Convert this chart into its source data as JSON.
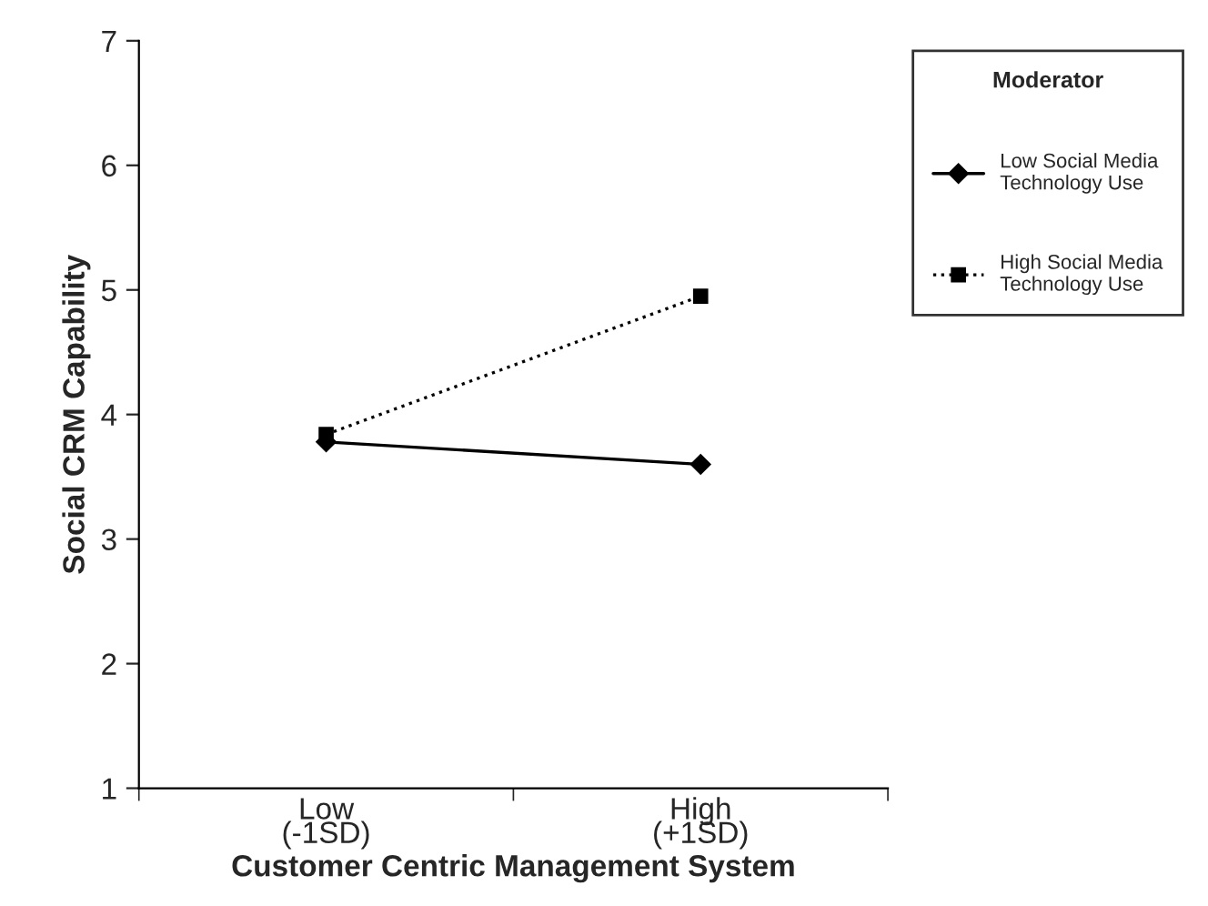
{
  "chart_data": {
    "type": "line",
    "xlabel": "Customer Centric Management System",
    "ylabel": "Social CRM Capability",
    "legend_title": "Moderator",
    "legend": "right",
    "grid": false,
    "categories": [
      "Low\n(-1SD)",
      "High\n(+1SD)"
    ],
    "ylim": [
      1,
      7
    ],
    "yticks": [
      1,
      2,
      3,
      4,
      5,
      6,
      7
    ],
    "series": [
      {
        "name": "Low Social Media\nTechnology Use",
        "color": "#000000",
        "values": [
          3.78,
          3.6
        ],
        "marker": "diamond",
        "line_style": "solid"
      },
      {
        "name": "High Social Media\nTechnology Use",
        "color": "#000000",
        "values": [
          3.84,
          4.95
        ],
        "marker": "square",
        "line_style": "dotted"
      }
    ]
  }
}
